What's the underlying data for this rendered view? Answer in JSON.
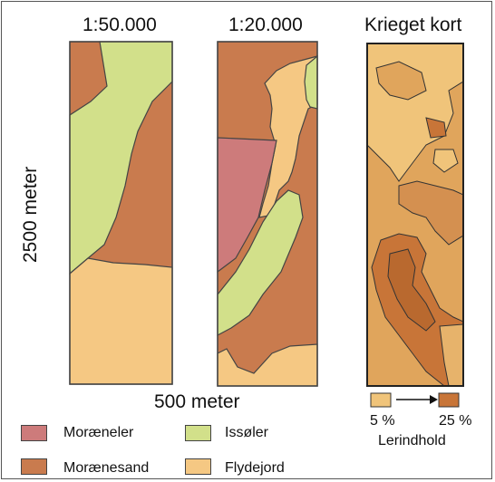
{
  "maps": {
    "map1_title": "1:50.000",
    "map2_title": "1:20.000",
    "map3_title": "Krieget kort"
  },
  "axes": {
    "height_label": "2500 meter",
    "width_label": "500 meter"
  },
  "legend": {
    "items": [
      {
        "label": "Moræneler",
        "color": "#cd7b7b"
      },
      {
        "label": "Issøler",
        "color": "#d2e08a"
      },
      {
        "label": "Morænesand",
        "color": "#c97b4e"
      },
      {
        "label": "Flydejord",
        "color": "#f5c883"
      }
    ]
  },
  "clay_scale": {
    "low_label": "5 %",
    "high_label": "25 %",
    "caption": "Lerindhold",
    "low_color": "#f0c47a",
    "high_color": "#c87538"
  },
  "colors": {
    "moraeneler": "#cd7b7b",
    "issoeler": "#d2e08a",
    "moraenesand": "#c97b4e",
    "flydejord": "#f5c883"
  }
}
